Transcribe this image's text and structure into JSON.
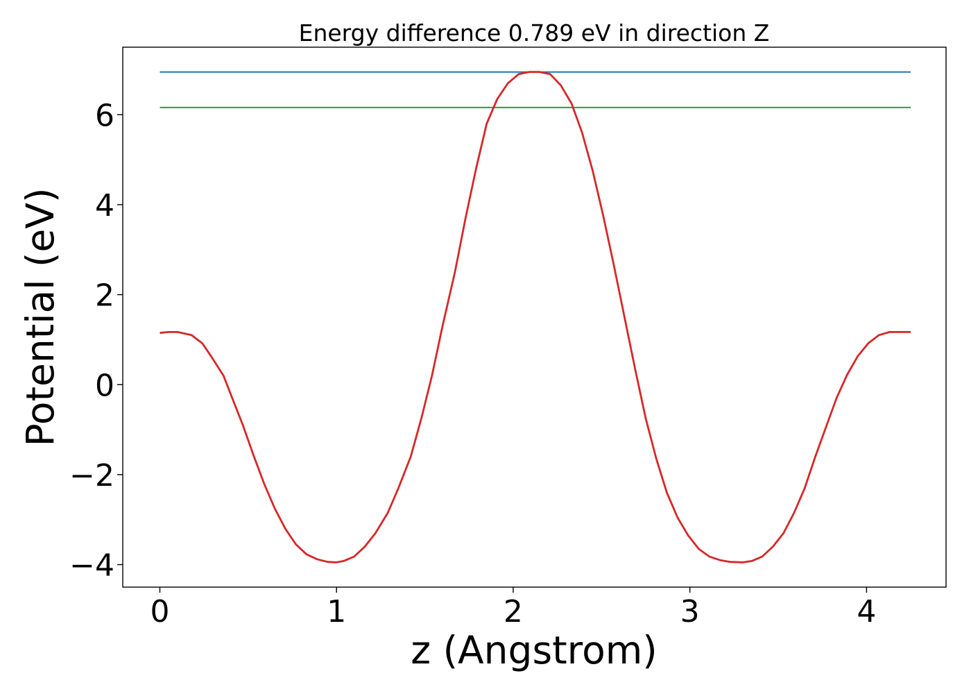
{
  "chart_data": {
    "type": "line",
    "title": "Energy difference 0.789 eV in direction Z",
    "xlabel": "z (Angstrom)",
    "ylabel": "Potential (eV)",
    "xlim": [
      -0.21,
      4.45
    ],
    "ylim": [
      -4.5,
      7.5
    ],
    "xticks": [
      0,
      1,
      2,
      3,
      4
    ],
    "xtick_labels": [
      "0",
      "1",
      "2",
      "3",
      "4"
    ],
    "yticks": [
      -4,
      -2,
      0,
      2,
      4,
      6
    ],
    "ytick_labels": [
      "−4",
      "−2",
      "0",
      "2",
      "4",
      "6"
    ],
    "grid": false,
    "series": [
      {
        "color": "#1f77b4",
        "x": [
          0,
          4.25
        ],
        "y": [
          6.95,
          6.95
        ]
      },
      {
        "color": "#2ca02c",
        "x": [
          0,
          4.25
        ],
        "y": [
          6.16,
          6.16
        ]
      },
      {
        "color": "#d62728",
        "x": [
          0,
          0.05,
          0.1,
          0.18,
          0.24,
          0.29,
          0.36,
          0.41,
          0.47,
          0.53,
          0.59,
          0.65,
          0.71,
          0.77,
          0.83,
          0.89,
          0.95,
          1.0,
          1.04,
          1.1,
          1.16,
          1.22,
          1.29,
          1.35,
          1.42,
          1.48,
          1.54,
          1.6,
          1.67,
          1.73,
          1.79,
          1.85,
          1.91,
          1.97,
          2.03,
          2.09,
          2.15,
          2.21,
          2.27,
          2.33,
          2.39,
          2.45,
          2.51,
          2.57,
          2.63,
          2.69,
          2.75,
          2.81,
          2.87,
          2.93,
          2.99,
          3.05,
          3.11,
          3.17,
          3.23,
          3.3,
          3.35,
          3.41,
          3.47,
          3.53,
          3.59,
          3.65,
          3.71,
          3.77,
          3.83,
          3.89,
          3.95,
          4.01,
          4.07,
          4.13,
          4.19,
          4.25
        ],
        "y": [
          1.15,
          1.17,
          1.17,
          1.1,
          0.92,
          0.63,
          0.2,
          -0.3,
          -0.9,
          -1.57,
          -2.2,
          -2.75,
          -3.2,
          -3.55,
          -3.77,
          -3.88,
          -3.94,
          -3.95,
          -3.92,
          -3.82,
          -3.6,
          -3.3,
          -2.85,
          -2.3,
          -1.6,
          -0.75,
          0.2,
          1.3,
          2.5,
          3.7,
          4.8,
          5.8,
          6.35,
          6.7,
          6.9,
          6.95,
          6.95,
          6.9,
          6.65,
          6.25,
          5.6,
          4.75,
          3.75,
          2.65,
          1.5,
          0.35,
          -0.75,
          -1.65,
          -2.4,
          -2.95,
          -3.35,
          -3.65,
          -3.82,
          -3.9,
          -3.94,
          -3.95,
          -3.92,
          -3.82,
          -3.6,
          -3.3,
          -2.85,
          -2.3,
          -1.6,
          -0.95,
          -0.3,
          0.22,
          0.63,
          0.92,
          1.1,
          1.17,
          1.17,
          1.17
        ]
      }
    ]
  }
}
